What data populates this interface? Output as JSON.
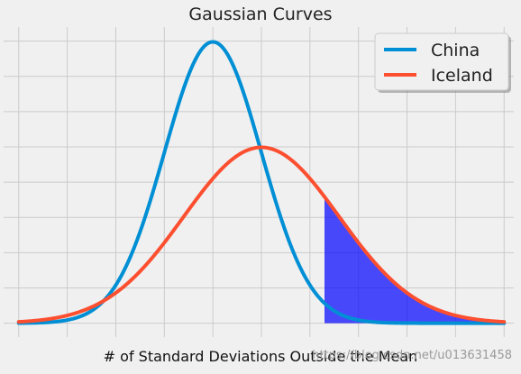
{
  "chart_data": {
    "type": "line",
    "title": "Gaussian Curves",
    "xlabel": "# of Standard Deviations Outside the Mean",
    "ylabel": "",
    "xlim": [
      -4.2,
      6.2
    ],
    "ylim": [
      -0.012,
      0.42
    ],
    "grid": true,
    "legend_position": "top-right",
    "series": [
      {
        "name": "China",
        "mean": 0,
        "std": 1,
        "color": "#008fd5"
      },
      {
        "name": "Iceland",
        "mean": 1,
        "std": 1.6,
        "color": "#fc4f30"
      }
    ],
    "shaded_region": {
      "x_from": 2.3,
      "x_to": 6,
      "fill_color": "#0000ff",
      "opacity": 0.7
    },
    "x_range_plotted": [
      -4,
      6
    ],
    "x_ticks_count": 11,
    "y_ticks_count": 9
  },
  "watermark": "https://blog.csdn.net/u013631458"
}
